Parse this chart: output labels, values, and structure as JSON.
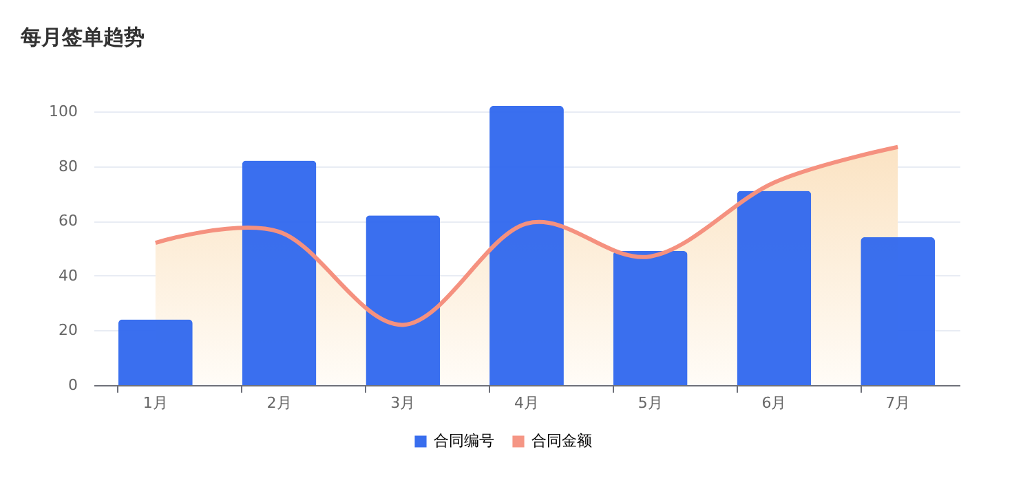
{
  "chart_data": {
    "type": "bar",
    "title": "每月签单趋势",
    "categories": [
      "1月",
      "2月",
      "3月",
      "4月",
      "5月",
      "6月",
      "7月"
    ],
    "series": [
      {
        "name": "合同编号",
        "color": "#2f67ee",
        "values": [
          24,
          82,
          62,
          102,
          49,
          71,
          54
        ]
      },
      {
        "name": "合同金额",
        "type": "area",
        "color": "#f5917f",
        "values": [
          52,
          56,
          22,
          59,
          47,
          74,
          87
        ]
      }
    ],
    "ylim": [
      0,
      102
    ],
    "yticks": [
      0,
      20,
      40,
      60,
      80,
      100
    ],
    "grid": "y",
    "legend": "bottom"
  }
}
